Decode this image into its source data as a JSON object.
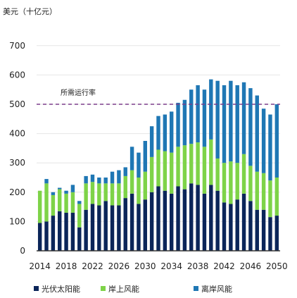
{
  "chart_data": {
    "type": "bar",
    "stacked": true,
    "ylabel": "美元（十亿元）",
    "ylim": [
      0,
      750
    ],
    "yticks": [
      0,
      100,
      200,
      300,
      400,
      500,
      600,
      700
    ],
    "xticks": [
      "2014",
      "2018",
      "2022",
      "2026",
      "2030",
      "2034",
      "2038",
      "2042",
      "2046",
      "2050"
    ],
    "categories": [
      2014,
      2015,
      2016,
      2017,
      2018,
      2019,
      2020,
      2021,
      2022,
      2023,
      2024,
      2025,
      2026,
      2027,
      2028,
      2029,
      2030,
      2031,
      2032,
      2033,
      2034,
      2035,
      2036,
      2037,
      2038,
      2039,
      2040,
      2041,
      2042,
      2043,
      2044,
      2045,
      2046,
      2047,
      2048,
      2049,
      2050
    ],
    "grid": true,
    "series": [
      {
        "name": "光伏太阳能",
        "color": "#0b2559",
        "values": [
          95,
          100,
          120,
          135,
          130,
          130,
          80,
          140,
          160,
          155,
          170,
          155,
          155,
          180,
          195,
          160,
          175,
          200,
          220,
          205,
          195,
          220,
          210,
          230,
          225,
          195,
          225,
          205,
          165,
          160,
          175,
          195,
          170,
          140,
          140,
          115,
          120
        ]
      },
      {
        "name": "岸上风能",
        "color": "#7ed348",
        "values": [
          110,
          130,
          70,
          75,
          65,
          70,
          80,
          90,
          75,
          75,
          60,
          75,
          75,
          75,
          80,
          90,
          95,
          120,
          125,
          135,
          140,
          135,
          150,
          135,
          145,
          160,
          155,
          110,
          135,
          145,
          125,
          135,
          120,
          130,
          125,
          125,
          130
        ]
      },
      {
        "name": "离岸风能",
        "color": "#1f77b4",
        "values": [
          0,
          15,
          10,
          5,
          10,
          25,
          10,
          25,
          25,
          20,
          20,
          40,
          45,
          30,
          80,
          85,
          105,
          105,
          115,
          125,
          140,
          150,
          155,
          185,
          195,
          195,
          205,
          265,
          265,
          275,
          265,
          245,
          265,
          260,
          220,
          225,
          250
        ]
      }
    ],
    "reference_line": {
      "value": 500,
      "label": "所需运行率",
      "color": "#7b3f8c"
    },
    "legend_position": "bottom"
  }
}
